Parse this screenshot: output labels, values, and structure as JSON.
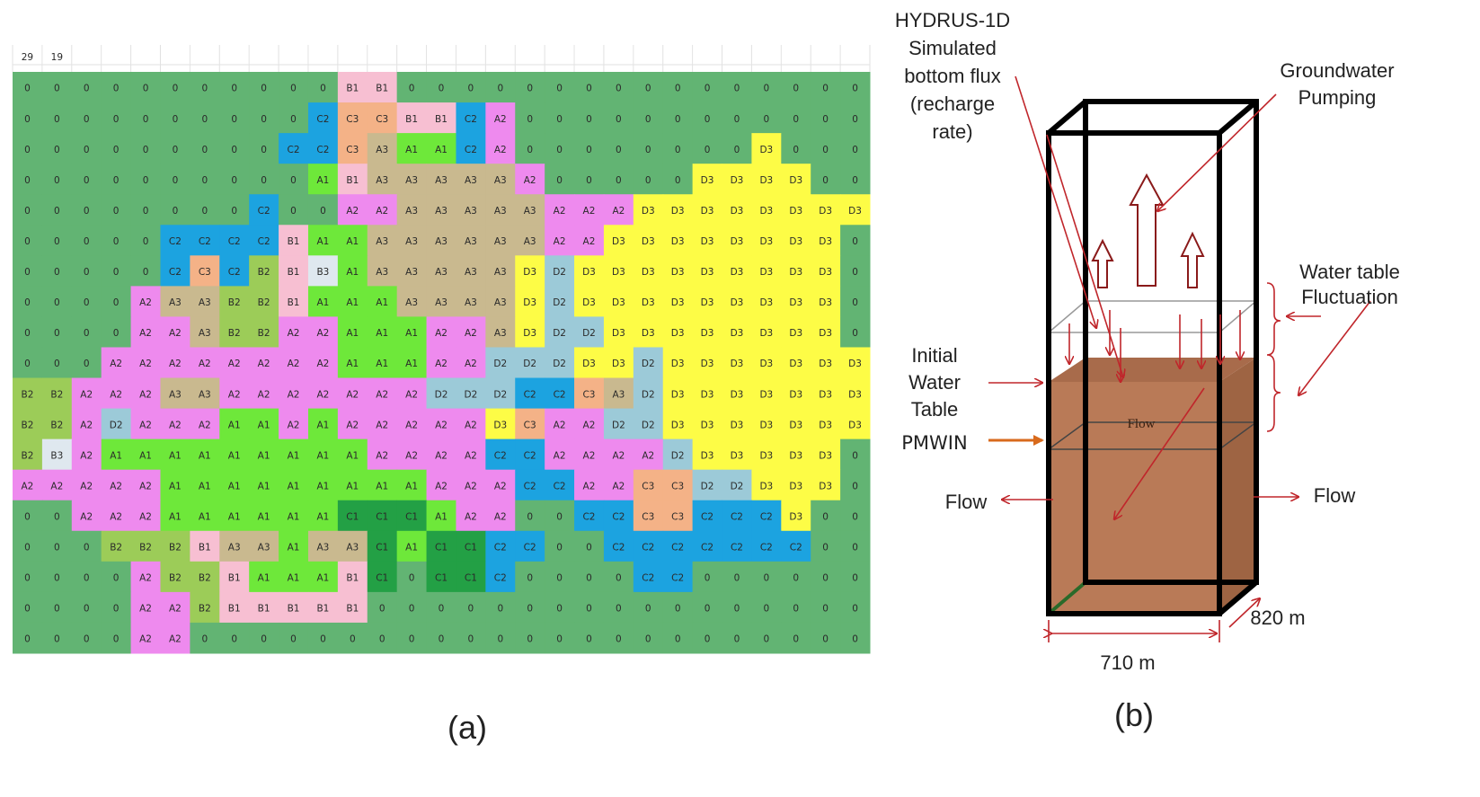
{
  "panel_a": {
    "header": [
      "29",
      "19"
    ],
    "zone_colors": {
      "0": "#62b473",
      "A1": "#6ee83a",
      "A2": "#ee8aee",
      "A3": "#c9b98f",
      "B1": "#f7bfd2",
      "B2": "#9ccc58",
      "B3": "#dfe8ef",
      "C1": "#23a045",
      "C2": "#1ca3e0",
      "C3": "#f4b287",
      "D2": "#9ccad8",
      "D3": "#fdfc46"
    },
    "grid": [
      [
        "0",
        "0",
        "0",
        "0",
        "0",
        "0",
        "0",
        "0",
        "0",
        "0",
        "0",
        "B1",
        "B1",
        "0",
        "0",
        "0",
        "0",
        "0",
        "0",
        "0",
        "0",
        "0",
        "0",
        "0",
        "0",
        "0",
        "0",
        "0",
        "0"
      ],
      [
        "0",
        "0",
        "0",
        "0",
        "0",
        "0",
        "0",
        "0",
        "0",
        "0",
        "C2",
        "C3",
        "C3",
        "B1",
        "B1",
        "C2",
        "A2",
        "0",
        "0",
        "0",
        "0",
        "0",
        "0",
        "0",
        "0",
        "0",
        "0",
        "0",
        "0"
      ],
      [
        "0",
        "0",
        "0",
        "0",
        "0",
        "0",
        "0",
        "0",
        "0",
        "C2",
        "C2",
        "C3",
        "A3",
        "A1",
        "A1",
        "C2",
        "A2",
        "0",
        "0",
        "0",
        "0",
        "0",
        "0",
        "0",
        "0",
        "D3",
        "0",
        "0",
        "0"
      ],
      [
        "0",
        "0",
        "0",
        "0",
        "0",
        "0",
        "0",
        "0",
        "0",
        "0",
        "A1",
        "B1",
        "A3",
        "A3",
        "A3",
        "A3",
        "A3",
        "A2",
        "0",
        "0",
        "0",
        "0",
        "0",
        "D3",
        "D3",
        "D3",
        "D3",
        "0",
        "0"
      ],
      [
        "0",
        "0",
        "0",
        "0",
        "0",
        "0",
        "0",
        "0",
        "C2",
        "0",
        "0",
        "A2",
        "A2",
        "A3",
        "A3",
        "A3",
        "A3",
        "A3",
        "A2",
        "A2",
        "A2",
        "D3",
        "D3",
        "D3",
        "D3",
        "D3",
        "D3",
        "D3",
        "D3"
      ],
      [
        "0",
        "0",
        "0",
        "0",
        "0",
        "C2",
        "C2",
        "C2",
        "C2",
        "B1",
        "A1",
        "A1",
        "A3",
        "A3",
        "A3",
        "A3",
        "A3",
        "A3",
        "A2",
        "A2",
        "D3",
        "D3",
        "D3",
        "D3",
        "D3",
        "D3",
        "D3",
        "D3",
        "0"
      ],
      [
        "0",
        "0",
        "0",
        "0",
        "0",
        "C2",
        "C3",
        "C2",
        "B2",
        "B1",
        "B3",
        "A1",
        "A3",
        "A3",
        "A3",
        "A3",
        "A3",
        "D3",
        "D2",
        "D3",
        "D3",
        "D3",
        "D3",
        "D3",
        "D3",
        "D3",
        "D3",
        "D3",
        "0"
      ],
      [
        "0",
        "0",
        "0",
        "0",
        "A2",
        "A3",
        "A3",
        "B2",
        "B2",
        "B1",
        "A1",
        "A1",
        "A1",
        "A3",
        "A3",
        "A3",
        "A3",
        "D3",
        "D2",
        "D3",
        "D3",
        "D3",
        "D3",
        "D3",
        "D3",
        "D3",
        "D3",
        "D3",
        "0"
      ],
      [
        "0",
        "0",
        "0",
        "0",
        "A2",
        "A2",
        "A3",
        "B2",
        "B2",
        "A2",
        "A2",
        "A1",
        "A1",
        "A1",
        "A2",
        "A2",
        "A3",
        "D3",
        "D2",
        "D2",
        "D3",
        "D3",
        "D3",
        "D3",
        "D3",
        "D3",
        "D3",
        "D3",
        "0"
      ],
      [
        "0",
        "0",
        "0",
        "A2",
        "A2",
        "A2",
        "A2",
        "A2",
        "A2",
        "A2",
        "A2",
        "A1",
        "A1",
        "A1",
        "A2",
        "A2",
        "D2",
        "D2",
        "D2",
        "D3",
        "D3",
        "D2",
        "D3",
        "D3",
        "D3",
        "D3",
        "D3",
        "D3",
        "D3"
      ],
      [
        "B2",
        "B2",
        "A2",
        "A2",
        "A2",
        "A3",
        "A3",
        "A2",
        "A2",
        "A2",
        "A2",
        "A2",
        "A2",
        "A2",
        "D2",
        "D2",
        "D2",
        "C2",
        "C2",
        "C3",
        "A3",
        "D2",
        "D3",
        "D3",
        "D3",
        "D3",
        "D3",
        "D3",
        "D3"
      ],
      [
        "B2",
        "B2",
        "A2",
        "D2",
        "A2",
        "A2",
        "A2",
        "A1",
        "A1",
        "A2",
        "A1",
        "A2",
        "A2",
        "A2",
        "A2",
        "A2",
        "D3",
        "C3",
        "A2",
        "A2",
        "D2",
        "D2",
        "D3",
        "D3",
        "D3",
        "D3",
        "D3",
        "D3",
        "D3"
      ],
      [
        "B2",
        "B3",
        "A2",
        "A1",
        "A1",
        "A1",
        "A1",
        "A1",
        "A1",
        "A1",
        "A1",
        "A1",
        "A2",
        "A2",
        "A2",
        "A2",
        "C2",
        "C2",
        "A2",
        "A2",
        "A2",
        "A2",
        "D2",
        "D3",
        "D3",
        "D3",
        "D3",
        "D3",
        "0"
      ],
      [
        "A2",
        "A2",
        "A2",
        "A2",
        "A2",
        "A1",
        "A1",
        "A1",
        "A1",
        "A1",
        "A1",
        "A1",
        "A1",
        "A1",
        "A2",
        "A2",
        "A2",
        "C2",
        "C2",
        "A2",
        "A2",
        "C3",
        "C3",
        "D2",
        "D2",
        "D3",
        "D3",
        "D3",
        "0"
      ],
      [
        "0",
        "0",
        "A2",
        "A2",
        "A2",
        "A1",
        "A1",
        "A1",
        "A1",
        "A1",
        "A1",
        "C1",
        "C1",
        "C1",
        "A1",
        "A2",
        "A2",
        "0",
        "0",
        "C2",
        "C2",
        "C3",
        "C3",
        "C2",
        "C2",
        "C2",
        "D3",
        "0",
        "0"
      ],
      [
        "0",
        "0",
        "0",
        "B2",
        "B2",
        "B2",
        "B1",
        "A3",
        "A3",
        "A1",
        "A3",
        "A3",
        "C1",
        "A1",
        "C1",
        "C1",
        "C2",
        "C2",
        "0",
        "0",
        "C2",
        "C2",
        "C2",
        "C2",
        "C2",
        "C2",
        "C2",
        "0",
        "0"
      ],
      [
        "0",
        "0",
        "0",
        "0",
        "A2",
        "B2",
        "B2",
        "B1",
        "A1",
        "A1",
        "A1",
        "B1",
        "C1",
        "0",
        "C1",
        "C1",
        "C2",
        "0",
        "0",
        "0",
        "0",
        "C2",
        "C2",
        "0",
        "0",
        "0",
        "0",
        "0",
        "0"
      ],
      [
        "0",
        "0",
        "0",
        "0",
        "A2",
        "A2",
        "B2",
        "B1",
        "B1",
        "B1",
        "B1",
        "B1",
        "0",
        "0",
        "0",
        "0",
        "0",
        "0",
        "0",
        "0",
        "0",
        "0",
        "0",
        "0",
        "0",
        "0",
        "0",
        "0",
        "0"
      ],
      [
        "0",
        "0",
        "0",
        "0",
        "A2",
        "A2",
        "0",
        "0",
        "0",
        "0",
        "0",
        "0",
        "0",
        "0",
        "0",
        "0",
        "0",
        "0",
        "0",
        "0",
        "0",
        "0",
        "0",
        "0",
        "0",
        "0",
        "0",
        "0",
        "0"
      ]
    ],
    "caption": "(a)"
  },
  "panel_b": {
    "hydrus_label": [
      "HYDRUS-1D",
      "Simulated",
      "bottom flux",
      "(recharge",
      "rate)"
    ],
    "pumping_label": [
      "Groundwater",
      "Pumping"
    ],
    "fluctuation_label": [
      "Water table",
      "Fluctuation"
    ],
    "initial_label": [
      "Initial",
      "Water",
      "Table"
    ],
    "pmwin_label": "PMWIN",
    "flow_left": "Flow",
    "flow_right": "Flow",
    "flow_inside": "Flow",
    "width_label": "710 m",
    "depth_label": "820 m",
    "caption": "(b)"
  }
}
